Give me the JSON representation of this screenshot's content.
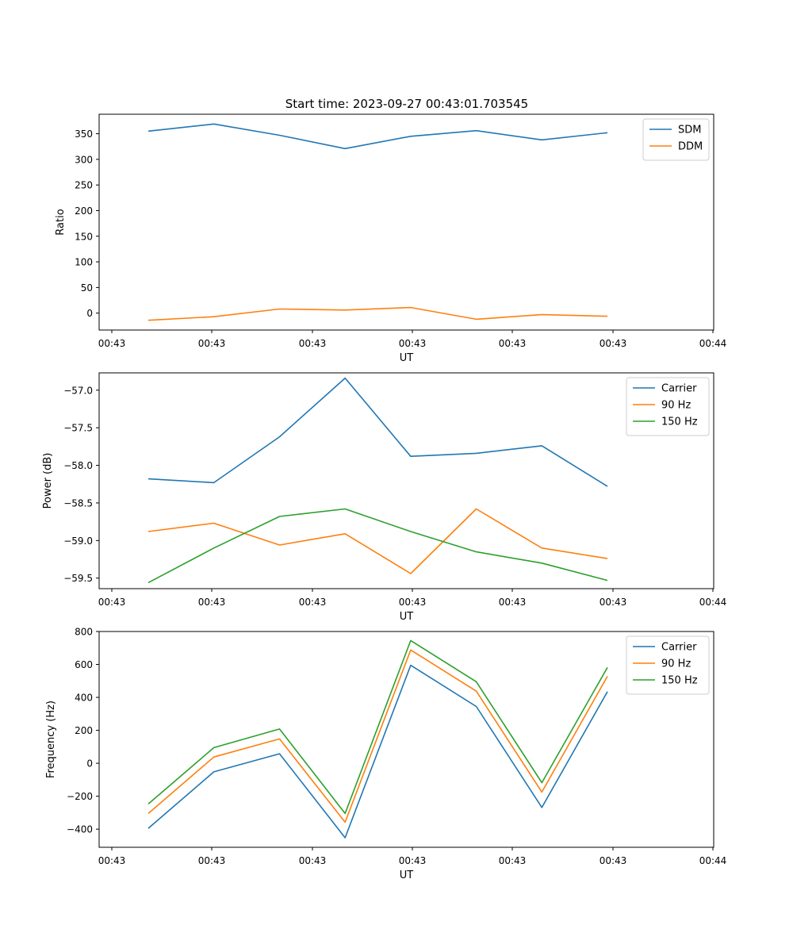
{
  "figure": {
    "title": "Start time: 2023-09-27 00:43:01.703545"
  },
  "chart_data": [
    {
      "type": "line",
      "title": "Start time: 2023-09-27 00:43:01.703545",
      "xlabel": "UT",
      "ylabel": "Ratio",
      "x_tick_labels": [
        "00:43",
        "00:43",
        "00:43",
        "00:43",
        "00:43",
        "00:43",
        "00:43"
      ],
      "x_end_label": "00:44",
      "yticks": [
        0,
        50,
        100,
        150,
        200,
        250,
        300,
        350
      ],
      "ytick_labels": [
        "0",
        "50",
        "100",
        "150",
        "200",
        "250",
        "300",
        "350"
      ],
      "ylim": [
        -33,
        388
      ],
      "x": [
        0,
        1,
        2,
        3,
        4,
        5,
        6,
        7
      ],
      "legend_position": "upper right",
      "series": [
        {
          "name": "SDM",
          "color": "#1f77b4",
          "values": [
            355,
            369,
            347,
            321,
            345,
            356,
            338,
            352
          ]
        },
        {
          "name": "DDM",
          "color": "#ff7f0e",
          "values": [
            -14,
            -7,
            8,
            6,
            11,
            -12,
            -3,
            -6
          ]
        }
      ]
    },
    {
      "type": "line",
      "title": "",
      "xlabel": "UT",
      "ylabel": "Power (dB)",
      "x_tick_labels": [
        "00:43",
        "00:43",
        "00:43",
        "00:43",
        "00:43",
        "00:43",
        "00:43"
      ],
      "x_end_label": "00:44",
      "yticks": [
        -59.5,
        -59.0,
        -58.5,
        -58.0,
        -57.5,
        -57.0
      ],
      "ytick_labels": [
        "−59.5",
        "−59.0",
        "−58.5",
        "−58.0",
        "−57.5",
        "−57.0"
      ],
      "ylim": [
        -59.64,
        -56.77
      ],
      "x": [
        0,
        1,
        2,
        3,
        4,
        5,
        6,
        7
      ],
      "legend_position": "upper right",
      "series": [
        {
          "name": "Carrier",
          "color": "#1f77b4",
          "values": [
            -58.18,
            -58.23,
            -57.62,
            -56.84,
            -57.88,
            -57.84,
            -57.74,
            -58.28
          ]
        },
        {
          "name": "90 Hz",
          "color": "#ff7f0e",
          "values": [
            -58.88,
            -58.77,
            -59.06,
            -58.91,
            -59.44,
            -58.58,
            -59.1,
            -59.24
          ]
        },
        {
          "name": "150 Hz",
          "color": "#2ca02c",
          "values": [
            -59.56,
            -59.1,
            -58.68,
            -58.58,
            -58.88,
            -59.15,
            -59.3,
            -59.53
          ]
        }
      ]
    },
    {
      "type": "line",
      "title": "",
      "xlabel": "UT",
      "ylabel": "Frequency (Hz)",
      "x_tick_labels": [
        "00:43",
        "00:43",
        "00:43",
        "00:43",
        "00:43",
        "00:43",
        "00:43"
      ],
      "x_end_label": "00:44",
      "yticks": [
        -400,
        -200,
        0,
        200,
        400,
        600,
        800
      ],
      "ytick_labels": [
        "−400",
        "−200",
        "0",
        "200",
        "400",
        "600",
        "800"
      ],
      "ylim": [
        -510,
        800
      ],
      "x": [
        0,
        1,
        2,
        3,
        4,
        5,
        6,
        7
      ],
      "legend_position": "upper right",
      "series": [
        {
          "name": "Carrier",
          "color": "#1f77b4",
          "values": [
            -395,
            -52,
            58,
            -452,
            595,
            345,
            -268,
            435
          ]
        },
        {
          "name": "90 Hz",
          "color": "#ff7f0e",
          "values": [
            -305,
            38,
            148,
            -358,
            688,
            438,
            -175,
            528
          ]
        },
        {
          "name": "150 Hz",
          "color": "#2ca02c",
          "values": [
            -247,
            95,
            208,
            -305,
            745,
            495,
            -118,
            582
          ]
        }
      ]
    }
  ]
}
